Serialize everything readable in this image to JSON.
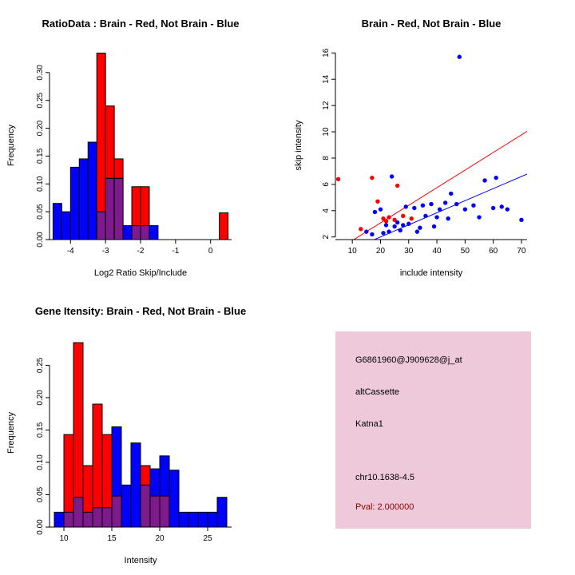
{
  "colors": {
    "red": "#ff0000",
    "blue": "#0000ff",
    "overlap": "#7d1a8c",
    "axis": "#000000"
  },
  "panels": {
    "ratio_hist": {
      "title": "RatioData : Brain - Red, Not Brain - Blue",
      "xlabel": "Log2 Ratio Skip/Include",
      "ylabel": "Frequency"
    },
    "scatter": {
      "title": "Brain - Red, Not Brain - Blue",
      "xlabel": "include intensity",
      "ylabel": "skip intensity"
    },
    "gene_hist": {
      "title": "Gene Itensity: Brain - Red, Not Brain - Blue",
      "xlabel": "Intensity",
      "ylabel": "Frequency"
    },
    "info_box": {
      "bg": "#eec9da",
      "lines": [
        {
          "id": "probe",
          "text": "G6861960@J909628@j_at",
          "color": "#000000"
        },
        {
          "id": "event",
          "text": "altCassette",
          "color": "#000000"
        },
        {
          "id": "gene",
          "text": "Katna1",
          "color": "#000000"
        },
        {
          "id": "locus",
          "text": "chr10.1638-4.5",
          "color": "#000000"
        },
        {
          "id": "pval",
          "text": "Pval: 2.000000",
          "color": "#8b0000"
        }
      ]
    }
  },
  "chart_data": [
    {
      "type": "histogram",
      "title": "RatioData : Brain - Red, Not Brain - Blue",
      "xlabel": "Log2 Ratio Skip/Include",
      "ylabel": "Frequency",
      "xlim": [
        -4.6,
        0.6
      ],
      "ylim": [
        0,
        0.34
      ],
      "xticks": [
        -4,
        -3,
        -2,
        -1,
        0
      ],
      "xtick_labels": [
        "-4",
        "-3",
        "-2",
        "-1",
        "0"
      ],
      "yticks": [
        0,
        0.05,
        0.1,
        0.15,
        0.2,
        0.25,
        0.3
      ],
      "ytick_labels": [
        "0.00",
        "0.05",
        "0.10",
        "0.15",
        "0.20",
        "0.25",
        "0.30"
      ],
      "bin_start": -4.5,
      "bin_width": 0.25,
      "overlap_color": "#7d1a8c",
      "series": [
        {
          "name": "Brain",
          "color": "#ff0000",
          "freq": [
            0,
            0,
            0,
            0,
            0,
            0.335,
            0.24,
            0.145,
            0,
            0.095,
            0.095,
            0,
            0,
            0,
            0,
            0,
            0,
            0,
            0,
            0.048
          ]
        },
        {
          "name": "Not Brain",
          "color": "#0000ff",
          "freq": [
            0.065,
            0.05,
            0.13,
            0.145,
            0.175,
            0.05,
            0.11,
            0.11,
            0.025,
            0.025,
            0.025,
            0.025,
            0,
            0,
            0,
            0,
            0,
            0,
            0,
            0
          ]
        }
      ]
    },
    {
      "type": "scatter",
      "title": "Brain - Red, Not Brain - Blue",
      "xlabel": "include intensity",
      "ylabel": "skip intensity",
      "xlim": [
        4,
        72
      ],
      "ylim": [
        1.8,
        16.2
      ],
      "xticks": [
        10,
        20,
        30,
        40,
        50,
        60,
        70
      ],
      "xtick_labels": [
        "10",
        "20",
        "30",
        "40",
        "50",
        "60",
        "70"
      ],
      "yticks": [
        2,
        4,
        6,
        8,
        10,
        12,
        14,
        16
      ],
      "ytick_labels": [
        "2",
        "4",
        "6",
        "8",
        "10",
        "12",
        "14",
        "16"
      ],
      "series": [
        {
          "name": "Brain",
          "color": "#ff0000",
          "points": [
            [
              5,
              6.4
            ],
            [
              13,
              2.6
            ],
            [
              17,
              6.5
            ],
            [
              19,
              4.7
            ],
            [
              21,
              3.4
            ],
            [
              22,
              3.2
            ],
            [
              23,
              3.5
            ],
            [
              25,
              3.3
            ],
            [
              26,
              5.9
            ],
            [
              28,
              3.6
            ],
            [
              31,
              3.4
            ]
          ]
        },
        {
          "name": "Not Brain",
          "color": "#0000ff",
          "points": [
            [
              15,
              2.4
            ],
            [
              17,
              2.2
            ],
            [
              18,
              3.9
            ],
            [
              20,
              4.1
            ],
            [
              21,
              2.3
            ],
            [
              22,
              2.9
            ],
            [
              23,
              2.4
            ],
            [
              24,
              6.6
            ],
            [
              25,
              2.8
            ],
            [
              26,
              3.1
            ],
            [
              27,
              2.5
            ],
            [
              28,
              2.9
            ],
            [
              29,
              4.3
            ],
            [
              30,
              3.0
            ],
            [
              32,
              4.2
            ],
            [
              33,
              2.4
            ],
            [
              34,
              2.7
            ],
            [
              35,
              4.4
            ],
            [
              36,
              3.6
            ],
            [
              38,
              4.5
            ],
            [
              39,
              2.8
            ],
            [
              40,
              3.5
            ],
            [
              41,
              4.1
            ],
            [
              43,
              4.6
            ],
            [
              44,
              3.4
            ],
            [
              45,
              5.3
            ],
            [
              47,
              4.5
            ],
            [
              48,
              15.7
            ],
            [
              50,
              4.1
            ],
            [
              53,
              4.4
            ],
            [
              55,
              3.5
            ],
            [
              57,
              6.3
            ],
            [
              60,
              4.2
            ],
            [
              61,
              6.5
            ],
            [
              63,
              4.3
            ],
            [
              65,
              4.1
            ],
            [
              70,
              3.3
            ]
          ]
        }
      ],
      "lines": [
        {
          "name": "brain-fit",
          "color": "#ff0000",
          "intercept": 0.39,
          "slope": 0.134
        },
        {
          "name": "notbrain-fit",
          "color": "#0000ff",
          "intercept": 0.16,
          "slope": 0.092
        }
      ]
    },
    {
      "type": "histogram",
      "title": "Gene Itensity: Brain - Red, Not Brain - Blue",
      "xlabel": "Intensity",
      "ylabel": "Frequency",
      "xlim": [
        8.5,
        27.5
      ],
      "ylim": [
        0,
        0.29
      ],
      "xticks": [
        10,
        15,
        20,
        25
      ],
      "xtick_labels": [
        "10",
        "15",
        "20",
        "25"
      ],
      "yticks": [
        0,
        0.05,
        0.1,
        0.15,
        0.2,
        0.25
      ],
      "ytick_labels": [
        "0.00",
        "0.05",
        "0.10",
        "0.15",
        "0.20",
        "0.25"
      ],
      "bin_start": 9,
      "bin_width": 1,
      "overlap_color": "#7d1a8c",
      "series": [
        {
          "name": "Brain",
          "color": "#ff0000",
          "freq": [
            0,
            0.143,
            0.285,
            0.095,
            0.19,
            0.143,
            0.048,
            0,
            0,
            0.095,
            0.048,
            0.048,
            0,
            0,
            0,
            0,
            0,
            0
          ]
        },
        {
          "name": "Not Brain",
          "color": "#0000ff",
          "freq": [
            0.023,
            0.023,
            0.046,
            0.023,
            0.03,
            0.03,
            0.155,
            0.065,
            0.13,
            0.065,
            0.09,
            0.11,
            0.088,
            0.023,
            0.023,
            0.023,
            0.023,
            0.046
          ]
        }
      ]
    }
  ]
}
